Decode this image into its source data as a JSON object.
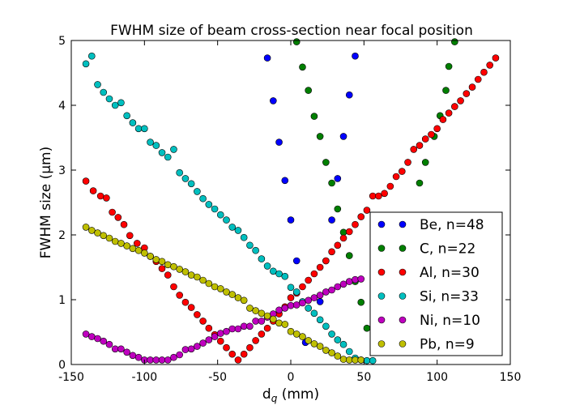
{
  "chart_data": {
    "type": "scatter",
    "title": "FWHM size of beam cross-section near focal position",
    "xlabel": "d",
    "xlabel_subscript": "q",
    "xlabel_unit": " (mm)",
    "ylabel": "FWHM size (μm)",
    "xlim": [
      -150,
      150
    ],
    "ylim": [
      0,
      5
    ],
    "xticks": [
      -150,
      -100,
      -50,
      0,
      50,
      100,
      150
    ],
    "xtick_labels": [
      "-150",
      "-100",
      "-50",
      "0",
      "50",
      "100",
      "150"
    ],
    "yticks": [
      0,
      1,
      2,
      3,
      4,
      5
    ],
    "ytick_labels": [
      "0",
      "1",
      "2",
      "3",
      "4",
      "5"
    ],
    "grid": false,
    "legend_position": "lower-right",
    "series": [
      {
        "name": "Be, n=48",
        "color": "#0000ff",
        "points": [
          [
            -16,
            4.73
          ],
          [
            -12,
            4.07
          ],
          [
            -8,
            3.43
          ],
          [
            -4,
            2.84
          ],
          [
            0,
            2.23
          ],
          [
            4,
            1.6
          ],
          [
            10,
            0.34
          ],
          [
            20,
            0.97
          ],
          [
            24,
            1.6
          ],
          [
            28,
            2.23
          ],
          [
            32,
            2.87
          ],
          [
            36,
            3.52
          ],
          [
            40,
            4.16
          ],
          [
            44,
            4.76
          ]
        ]
      },
      {
        "name": "C, n=22",
        "color": "#007f00",
        "points": [
          [
            4,
            4.98
          ],
          [
            8,
            4.59
          ],
          [
            12,
            4.23
          ],
          [
            16,
            3.83
          ],
          [
            20,
            3.52
          ],
          [
            24,
            3.12
          ],
          [
            28,
            2.8
          ],
          [
            32,
            2.4
          ],
          [
            36,
            2.04
          ],
          [
            40,
            1.68
          ],
          [
            44,
            1.28
          ],
          [
            48,
            0.96
          ],
          [
            52,
            0.56
          ],
          [
            78,
            0.58
          ],
          [
            80,
            1.28
          ],
          [
            84,
            2.04
          ],
          [
            88,
            2.8
          ],
          [
            92,
            3.12
          ],
          [
            98,
            3.52
          ],
          [
            102,
            3.84
          ],
          [
            106,
            4.23
          ],
          [
            108,
            4.6
          ],
          [
            112,
            4.98
          ]
        ]
      },
      {
        "name": "Al, n=30",
        "color": "#ff0000",
        "points": [
          [
            -140,
            2.83
          ],
          [
            -135,
            2.68
          ],
          [
            -130,
            2.6
          ],
          [
            -126,
            2.57
          ],
          [
            -122,
            2.35
          ],
          [
            -118,
            2.27
          ],
          [
            -114,
            2.16
          ],
          [
            -110,
            1.99
          ],
          [
            -105,
            1.87
          ],
          [
            -100,
            1.8
          ],
          [
            -96,
            1.67
          ],
          [
            -92,
            1.59
          ],
          [
            -88,
            1.48
          ],
          [
            -84,
            1.38
          ],
          [
            -80,
            1.2
          ],
          [
            -76,
            1.07
          ],
          [
            -72,
            0.96
          ],
          [
            -68,
            0.88
          ],
          [
            -64,
            0.77
          ],
          [
            -60,
            0.67
          ],
          [
            -56,
            0.56
          ],
          [
            -52,
            0.46
          ],
          [
            -48,
            0.36
          ],
          [
            -44,
            0.26
          ],
          [
            -40,
            0.16
          ],
          [
            -36,
            0.07
          ],
          [
            -32,
            0.16
          ],
          [
            -28,
            0.26
          ],
          [
            -24,
            0.37
          ],
          [
            -20,
            0.47
          ],
          [
            -16,
            0.56
          ],
          [
            -12,
            0.67
          ],
          [
            -8,
            0.78
          ],
          [
            -4,
            0.89
          ],
          [
            0,
            1.03
          ],
          [
            4,
            1.1
          ],
          [
            8,
            1.2
          ],
          [
            12,
            1.3
          ],
          [
            16,
            1.4
          ],
          [
            20,
            1.5
          ],
          [
            24,
            1.6
          ],
          [
            28,
            1.74
          ],
          [
            32,
            1.84
          ],
          [
            36,
            1.95
          ],
          [
            40,
            2.05
          ],
          [
            44,
            2.16
          ],
          [
            48,
            2.28
          ],
          [
            52,
            2.38
          ],
          [
            56,
            2.6
          ],
          [
            60,
            2.6
          ],
          [
            64,
            2.64
          ],
          [
            68,
            2.75
          ],
          [
            72,
            2.9
          ],
          [
            76,
            2.98
          ],
          [
            80,
            3.12
          ],
          [
            84,
            3.32
          ],
          [
            88,
            3.38
          ],
          [
            92,
            3.48
          ],
          [
            96,
            3.55
          ],
          [
            100,
            3.64
          ],
          [
            104,
            3.78
          ],
          [
            108,
            3.88
          ],
          [
            112,
            3.98
          ],
          [
            116,
            4.07
          ],
          [
            120,
            4.18
          ],
          [
            124,
            4.28
          ],
          [
            128,
            4.4
          ],
          [
            132,
            4.51
          ],
          [
            136,
            4.62
          ],
          [
            140,
            4.73
          ]
        ]
      },
      {
        "name": "Si, n=33",
        "color": "#00bfbf",
        "points": [
          [
            -140,
            4.64
          ],
          [
            -136,
            4.76
          ],
          [
            -132,
            4.32
          ],
          [
            -128,
            4.2
          ],
          [
            -124,
            4.1
          ],
          [
            -120,
            4.0
          ],
          [
            -116,
            4.04
          ],
          [
            -112,
            3.84
          ],
          [
            -108,
            3.73
          ],
          [
            -104,
            3.64
          ],
          [
            -100,
            3.64
          ],
          [
            -96,
            3.43
          ],
          [
            -92,
            3.38
          ],
          [
            -88,
            3.27
          ],
          [
            -84,
            3.2
          ],
          [
            -80,
            3.32
          ],
          [
            -76,
            2.96
          ],
          [
            -72,
            2.87
          ],
          [
            -68,
            2.79
          ],
          [
            -64,
            2.67
          ],
          [
            -60,
            2.56
          ],
          [
            -56,
            2.47
          ],
          [
            -52,
            2.4
          ],
          [
            -48,
            2.31
          ],
          [
            -44,
            2.23
          ],
          [
            -40,
            2.12
          ],
          [
            -36,
            2.07
          ],
          [
            -32,
            1.96
          ],
          [
            -28,
            1.84
          ],
          [
            -24,
            1.76
          ],
          [
            -20,
            1.63
          ],
          [
            -16,
            1.52
          ],
          [
            -12,
            1.44
          ],
          [
            -8,
            1.4
          ],
          [
            -4,
            1.36
          ],
          [
            0,
            1.19
          ],
          [
            4,
            1.12
          ],
          [
            8,
            0.97
          ],
          [
            12,
            0.87
          ],
          [
            16,
            0.79
          ],
          [
            20,
            0.69
          ],
          [
            24,
            0.59
          ],
          [
            28,
            0.47
          ],
          [
            32,
            0.38
          ],
          [
            36,
            0.31
          ],
          [
            40,
            0.2
          ],
          [
            44,
            0.1
          ],
          [
            48,
            0.07
          ],
          [
            52,
            0.06
          ],
          [
            56,
            0.06
          ]
        ]
      },
      {
        "name": "Ni, n=10",
        "color": "#bf00bf",
        "points": [
          [
            -140,
            0.47
          ],
          [
            -136,
            0.43
          ],
          [
            -132,
            0.4
          ],
          [
            -128,
            0.36
          ],
          [
            -124,
            0.31
          ],
          [
            -120,
            0.24
          ],
          [
            -116,
            0.24
          ],
          [
            -112,
            0.19
          ],
          [
            -108,
            0.14
          ],
          [
            -104,
            0.11
          ],
          [
            -100,
            0.07
          ],
          [
            -96,
            0.07
          ],
          [
            -92,
            0.07
          ],
          [
            -88,
            0.07
          ],
          [
            -84,
            0.07
          ],
          [
            -80,
            0.11
          ],
          [
            -76,
            0.15
          ],
          [
            -72,
            0.23
          ],
          [
            -68,
            0.24
          ],
          [
            -64,
            0.28
          ],
          [
            -60,
            0.33
          ],
          [
            -56,
            0.38
          ],
          [
            -52,
            0.43
          ],
          [
            -48,
            0.48
          ],
          [
            -44,
            0.51
          ],
          [
            -40,
            0.55
          ],
          [
            -36,
            0.55
          ],
          [
            -32,
            0.59
          ],
          [
            -28,
            0.59
          ],
          [
            -24,
            0.67
          ],
          [
            -20,
            0.67
          ],
          [
            -16,
            0.73
          ],
          [
            -12,
            0.78
          ],
          [
            -8,
            0.84
          ],
          [
            -4,
            0.87
          ],
          [
            0,
            0.91
          ],
          [
            4,
            0.92
          ],
          [
            8,
            0.95
          ],
          [
            12,
            0.99
          ],
          [
            16,
            1.03
          ],
          [
            20,
            1.07
          ],
          [
            24,
            1.12
          ],
          [
            28,
            1.15
          ],
          [
            32,
            1.2
          ],
          [
            36,
            1.24
          ],
          [
            40,
            1.28
          ],
          [
            44,
            1.31
          ],
          [
            48,
            1.32
          ]
        ]
      },
      {
        "name": "Pb, n=9",
        "color": "#bfbf00",
        "points": [
          [
            -140,
            2.12
          ],
          [
            -136,
            2.07
          ],
          [
            -132,
            2.03
          ],
          [
            -128,
            1.99
          ],
          [
            -124,
            1.95
          ],
          [
            -120,
            1.9
          ],
          [
            -116,
            1.87
          ],
          [
            -112,
            1.83
          ],
          [
            -108,
            1.79
          ],
          [
            -104,
            1.76
          ],
          [
            -100,
            1.72
          ],
          [
            -96,
            1.67
          ],
          [
            -92,
            1.62
          ],
          [
            -88,
            1.59
          ],
          [
            -84,
            1.54
          ],
          [
            -80,
            1.51
          ],
          [
            -76,
            1.47
          ],
          [
            -72,
            1.43
          ],
          [
            -68,
            1.38
          ],
          [
            -64,
            1.35
          ],
          [
            -60,
            1.3
          ],
          [
            -56,
            1.25
          ],
          [
            -52,
            1.2
          ],
          [
            -48,
            1.17
          ],
          [
            -44,
            1.12
          ],
          [
            -40,
            1.08
          ],
          [
            -36,
            1.03
          ],
          [
            -32,
            0.99
          ],
          [
            -28,
            0.87
          ],
          [
            -24,
            0.83
          ],
          [
            -20,
            0.79
          ],
          [
            -16,
            0.75
          ],
          [
            -12,
            0.7
          ],
          [
            -8,
            0.64
          ],
          [
            -4,
            0.62
          ],
          [
            0,
            0.51
          ],
          [
            4,
            0.47
          ],
          [
            8,
            0.43
          ],
          [
            12,
            0.37
          ],
          [
            16,
            0.32
          ],
          [
            20,
            0.28
          ],
          [
            24,
            0.22
          ],
          [
            28,
            0.18
          ],
          [
            32,
            0.13
          ],
          [
            36,
            0.08
          ],
          [
            40,
            0.07
          ],
          [
            44,
            0.07
          ],
          [
            48,
            0.07
          ]
        ]
      }
    ]
  }
}
